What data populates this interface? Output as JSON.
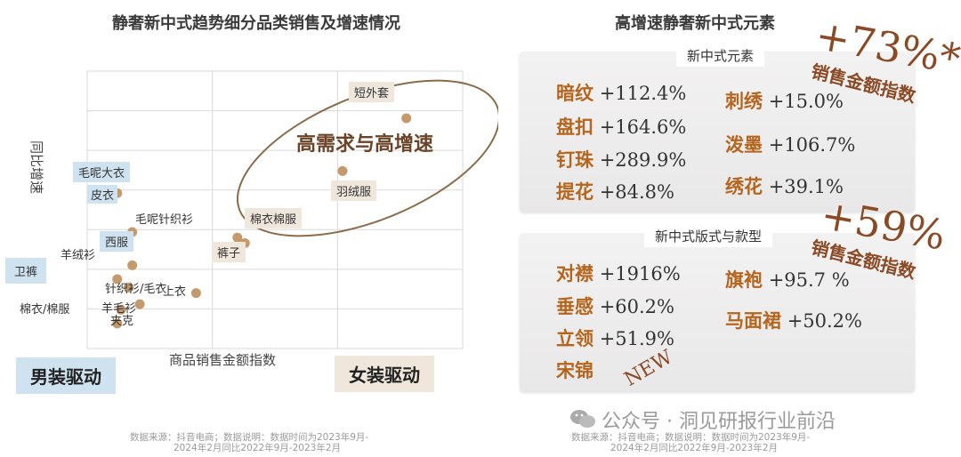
{
  "left": {
    "title": "静奢新中式趋势细分品类销售及增速情况",
    "xlabel": "商品销售金额指数",
    "ylabel": "同比增速",
    "annotation": "高需求与高增速",
    "men_label": "男装驱动",
    "women_label": "女装驱动"
  },
  "chart_data": {
    "type": "scatter",
    "title": "静奢新中式趋势细分品类销售及增速情况",
    "xlabel": "商品销售金额指数",
    "ylabel": "同比增速",
    "grid": true,
    "points": [
      {
        "label": "短外套",
        "x": 0.85,
        "y": 0.83
      },
      {
        "label": "羽绒服",
        "x": 0.68,
        "y": 0.64
      },
      {
        "label": "棉衣棉服",
        "x": 0.44,
        "y": 0.48
      },
      {
        "label": "裤子",
        "x": 0.4,
        "y": 0.4
      },
      {
        "label": "毛呢针织衫",
        "x": 0.42,
        "y": 0.38
      },
      {
        "label": "毛呢大衣",
        "x": 0.02,
        "y": 0.62
      },
      {
        "label": "皮衣",
        "x": 0.08,
        "y": 0.56
      },
      {
        "label": "西服",
        "x": 0.12,
        "y": 0.42
      },
      {
        "label": "羊绒衫",
        "x": 0.12,
        "y": 0.3
      },
      {
        "label": "卫裤",
        "x": 0.08,
        "y": 0.25
      },
      {
        "label": "针织衫/毛衣",
        "x": 0.11,
        "y": 0.22
      },
      {
        "label": "上衣",
        "x": 0.29,
        "y": 0.2
      },
      {
        "label": "羊毛衫",
        "x": 0.14,
        "y": 0.16
      },
      {
        "label": "棉衣/棉服",
        "x": 0.09,
        "y": 0.14
      },
      {
        "label": "夹克",
        "x": 0.08,
        "y": 0.09
      }
    ]
  },
  "right": {
    "title": "高增速静奢新中式元素",
    "panel1_title": "新中式元素",
    "panel1_items": [
      {
        "name": "暗纹",
        "value": "+112.4%"
      },
      {
        "name": "盘扣",
        "value": "+164.6%"
      },
      {
        "name": "钉珠",
        "value": "+289.9%"
      },
      {
        "name": "提花",
        "value": "+84.8%"
      },
      {
        "name": "刺绣",
        "value": "+15.0%"
      },
      {
        "name": "泼墨",
        "value": "+106.7%"
      },
      {
        "name": "绣花",
        "value": "+39.1%"
      }
    ],
    "panel2_title": "新中式版式与款型",
    "panel2_items": [
      {
        "name": "对襟",
        "value": "+1916%"
      },
      {
        "name": "垂感",
        "value": "+60.2%"
      },
      {
        "name": "立领",
        "value": "+51.9%"
      },
      {
        "name": "宋锦",
        "value": ""
      },
      {
        "name": "旗袍",
        "value": "+95.7 %"
      },
      {
        "name": "马面裙",
        "value": "+50.2%"
      }
    ],
    "stat1": "+73%*",
    "stat1_sub": "销售金额指数",
    "stat2": "+59%",
    "stat2_sub": "销售金额指数",
    "new_badge": "NEW"
  },
  "footer": {
    "src1": "数据来源：抖音电商；数据说明：数据时间为2023年9月-",
    "src2": "2024年2月同比2022年9月-2023年2月",
    "watermark": "公众号 · 洞见研报行业前沿"
  }
}
